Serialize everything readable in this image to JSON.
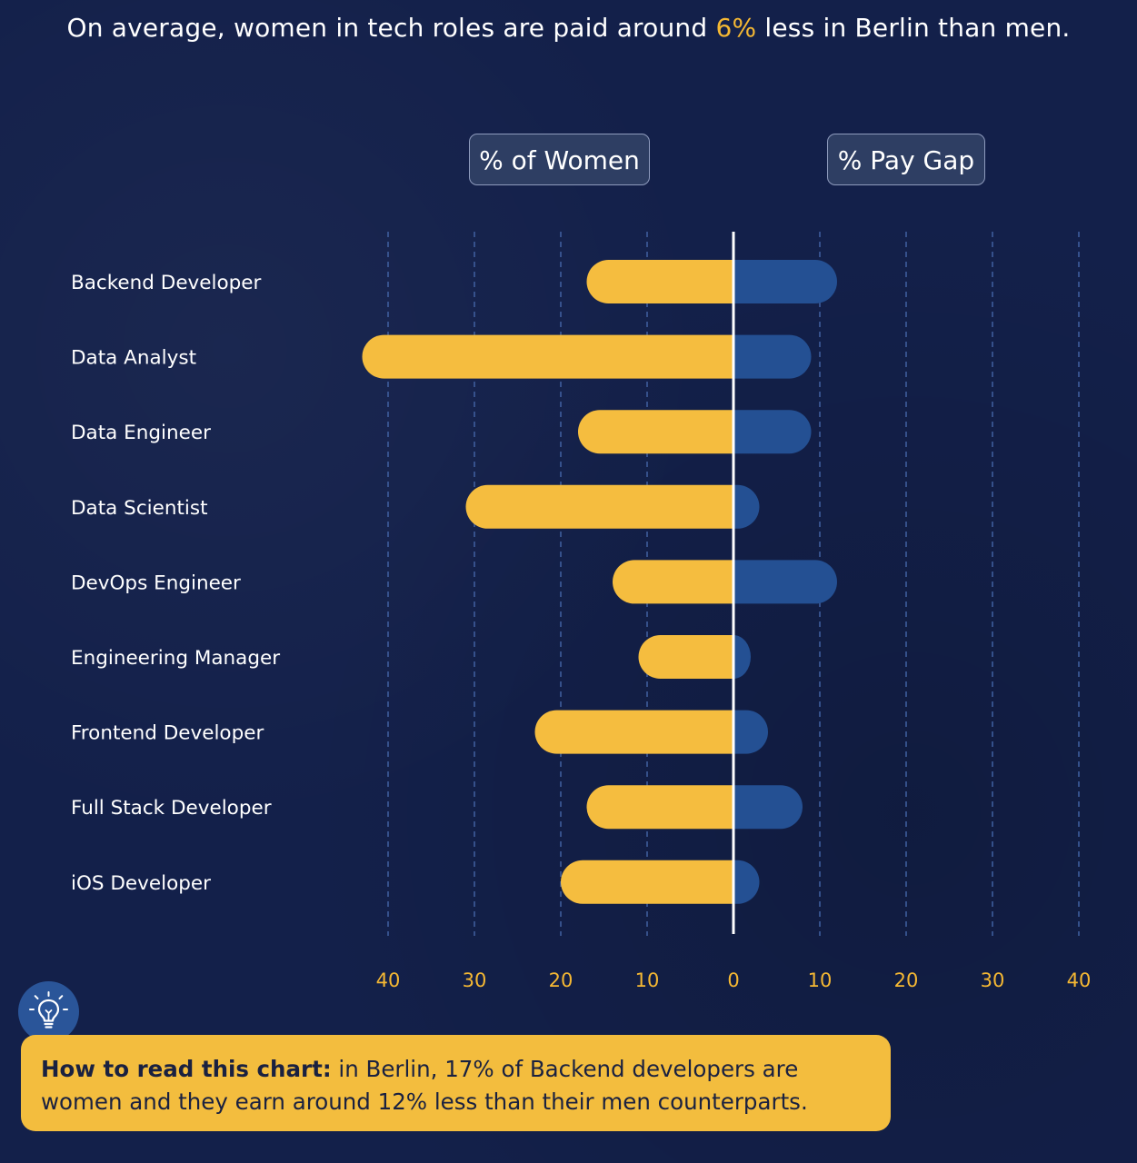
{
  "headline": {
    "before": "On average, women in tech roles are paid around ",
    "highlight": "6%",
    "after": " less in Berlin than men."
  },
  "legend": {
    "women_label": "% of Women",
    "pay_gap_label": "% Pay Gap"
  },
  "colors": {
    "background": "#13204a",
    "women_bar": "#f5bd3f",
    "pay_gap_bar": "#245093",
    "accent": "#f5b833",
    "callout": "#f3bd3e"
  },
  "chart_data": {
    "type": "bar",
    "orientation": "horizontal-diverging",
    "categories": [
      "Backend Developer",
      "Data Analyst",
      "Data Engineer",
      "Data Scientist",
      "DevOps Engineer",
      "Engineering Manager",
      "Frontend Developer",
      "Full Stack Developer",
      "iOS Developer"
    ],
    "series": [
      {
        "name": "% of Women",
        "side": "left",
        "values": [
          17,
          43,
          18,
          31,
          14,
          11,
          23,
          17,
          20
        ]
      },
      {
        "name": "% Pay Gap",
        "side": "right",
        "values": [
          12,
          9,
          9,
          3,
          12,
          2,
          4,
          8,
          3
        ]
      }
    ],
    "xlim": [
      -40,
      40
    ],
    "ticks": [
      "40",
      "30",
      "20",
      "10",
      "0",
      "10",
      "20",
      "30",
      "40"
    ],
    "grid": true
  },
  "tip": {
    "icon": "lightbulb-icon",
    "bold": "How to read this chart:",
    "text": " in Berlin, 17% of Backend developers are women and they earn around 12% less than their men counterparts."
  }
}
